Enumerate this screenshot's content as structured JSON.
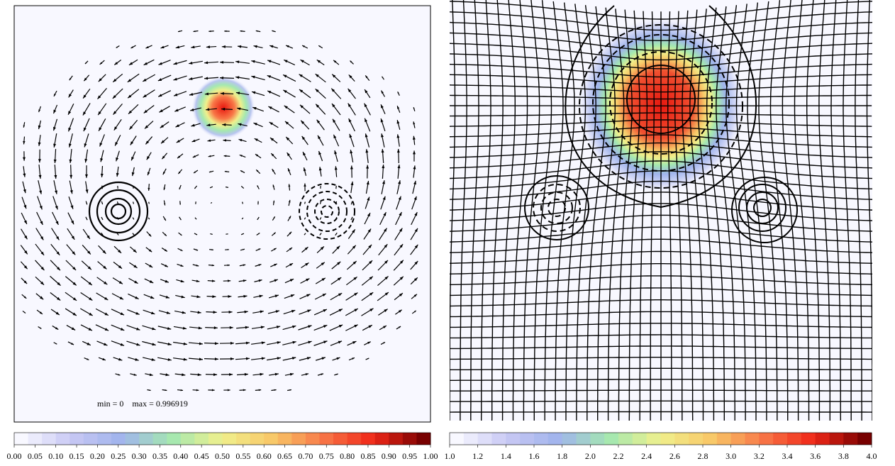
{
  "chart_data": [
    {
      "type": "vector-field",
      "annotation": "min = 0    max = 0.996919",
      "xlim": [
        0,
        1
      ],
      "xticks": [
        {
          "value": 0,
          "label": "0.00"
        },
        0.05,
        {
          "value": 0.1,
          "label": "0.10"
        },
        0.15,
        {
          "value": 0.2,
          "label": "0.20"
        },
        0.25,
        {
          "value": 0.3,
          "label": "0.30"
        },
        0.35,
        {
          "value": 0.4,
          "label": "0.40"
        },
        0.45,
        {
          "value": 0.5,
          "label": "0.50"
        },
        0.55,
        {
          "value": 0.6,
          "label": "0.60"
        },
        0.65,
        {
          "value": 0.7,
          "label": "0.70"
        },
        0.75,
        {
          "value": 0.8,
          "label": "0.80"
        },
        0.85,
        {
          "value": 0.9,
          "label": "0.90"
        },
        0.95,
        {
          "value": 1,
          "label": "1.00"
        }
      ],
      "colormap": [
        "#f8f8ff",
        "#c8c8f4",
        "#a0b4ec",
        "#a4e8b0",
        "#f0f08c",
        "#f8c868",
        "#f87848",
        "#f02818",
        "#780000"
      ]
    },
    {
      "type": "deformed-grid",
      "xlim": [
        1,
        4
      ],
      "xticks": [
        {
          "value": 1,
          "label": "1.0"
        },
        1.2,
        1.4,
        1.6,
        1.8,
        {
          "value": 2,
          "label": "2.0"
        },
        2.2,
        2.4,
        2.6,
        2.8,
        {
          "value": 3,
          "label": "3.0"
        },
        3.2,
        3.4,
        3.6,
        3.8,
        {
          "value": 4,
          "label": "4.0"
        }
      ],
      "colormap": [
        "#f8f8ff",
        "#c8c8f4",
        "#a0b4ec",
        "#a4e8b0",
        "#f0f08c",
        "#f8c868",
        "#f87848",
        "#f02818",
        "#780000"
      ]
    }
  ]
}
